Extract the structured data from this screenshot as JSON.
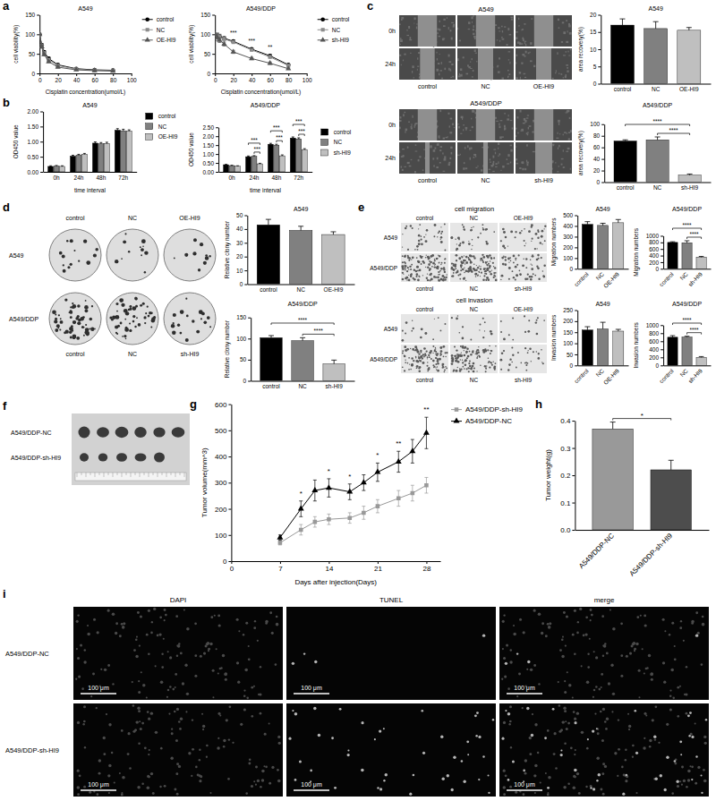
{
  "panel_labels": [
    "a",
    "b",
    "c",
    "d",
    "e",
    "f",
    "g",
    "h",
    "i"
  ],
  "chart_data": [
    {
      "type": "line",
      "title": "A549",
      "x_label": "Cisplatin concentration(umol/L)",
      "y_label": "cell viability(%)",
      "x": [
        0,
        2.5,
        5,
        10,
        20,
        40,
        60,
        80
      ],
      "xlim": [
        0,
        100
      ],
      "xticks": [
        0,
        20,
        40,
        60,
        80,
        100
      ],
      "ylim": [
        0,
        150
      ],
      "yticks": [
        0,
        50,
        100,
        150
      ],
      "legend": "right",
      "series": [
        {
          "name": "control",
          "color": "#000000",
          "marker": "circle",
          "values": [
            100,
            72,
            55,
            38,
            22,
            12,
            9,
            8
          ],
          "errors": [
            0,
            4,
            3,
            3,
            2,
            1,
            1,
            1
          ]
        },
        {
          "name": "NC",
          "color": "#8c8c8c",
          "marker": "square",
          "values": [
            100,
            70,
            52,
            35,
            20,
            11,
            8,
            7
          ],
          "errors": [
            0,
            4,
            3,
            3,
            2,
            1,
            1,
            1
          ]
        },
        {
          "name": "OE-HI9",
          "color": "#555555",
          "marker": "triangle",
          "values": [
            100,
            68,
            48,
            30,
            16,
            9,
            7,
            6
          ],
          "errors": [
            0,
            4,
            3,
            2,
            2,
            1,
            1,
            1
          ]
        }
      ]
    },
    {
      "type": "line",
      "title": "A549/DDP",
      "x_label": "Cisplatin concentration(umol/L)",
      "y_label": "cell viability(%)",
      "x": [
        0,
        2.5,
        5,
        10,
        20,
        40,
        60,
        80
      ],
      "xlim": [
        0,
        100
      ],
      "xticks": [
        0,
        20,
        40,
        60,
        80,
        100
      ],
      "ylim": [
        0,
        150
      ],
      "yticks": [
        0,
        50,
        100,
        150
      ],
      "legend": "right",
      "series": [
        {
          "name": "control",
          "color": "#000000",
          "marker": "circle",
          "values": [
            100,
            97,
            95,
            90,
            82,
            62,
            45,
            22
          ],
          "errors": [
            0,
            6,
            5,
            4,
            3,
            3,
            3,
            2
          ]
        },
        {
          "name": "NC",
          "color": "#8c8c8c",
          "marker": "square",
          "values": [
            100,
            96,
            93,
            88,
            80,
            60,
            42,
            20
          ],
          "errors": [
            0,
            7,
            6,
            5,
            4,
            3,
            3,
            2
          ]
        },
        {
          "name": "sh-HI9",
          "color": "#555555",
          "marker": "triangle",
          "values": [
            100,
            92,
            85,
            75,
            55,
            38,
            26,
            12
          ],
          "errors": [
            0,
            8,
            6,
            5,
            4,
            3,
            3,
            2
          ]
        }
      ],
      "annotations": [
        {
          "text": "***",
          "x": 20
        },
        {
          "text": "***",
          "x": 40
        },
        {
          "text": "**",
          "x": 60
        }
      ]
    },
    {
      "type": "bar",
      "title": "A549",
      "x_label": "time interval",
      "y_label": "OD450 value",
      "categories": [
        "0h",
        "24h",
        "48h",
        "72h"
      ],
      "ylim": [
        0,
        2
      ],
      "yticks": [
        {
          "value": 0,
          "label": "0.00"
        },
        {
          "value": 0.5,
          "label": "0.50"
        },
        {
          "value": 1,
          "label": "1.00"
        },
        {
          "value": 1.5,
          "label": "1.50"
        },
        {
          "value": 2,
          "label": "2.00"
        }
      ],
      "legend": "right",
      "series": [
        {
          "name": "control",
          "color": "#000000",
          "values": [
            0.18,
            0.52,
            0.95,
            1.38
          ],
          "errors": [
            0.02,
            0.03,
            0.04,
            0.05
          ]
        },
        {
          "name": "NC",
          "color": "#808080",
          "values": [
            0.19,
            0.55,
            0.93,
            1.36
          ],
          "errors": [
            0.02,
            0.03,
            0.04,
            0.05
          ]
        },
        {
          "name": "OE-HI9",
          "color": "#bfbfbf",
          "values": [
            0.18,
            0.58,
            0.94,
            1.35
          ],
          "errors": [
            0.02,
            0.03,
            0.04,
            0.04
          ]
        }
      ]
    },
    {
      "type": "bar",
      "title": "A549/DDP",
      "x_label": "time interval",
      "y_label": "OD450 value",
      "categories": [
        "0h",
        "24h",
        "48h",
        "72h"
      ],
      "ylim": [
        0,
        2.5
      ],
      "yticks": [
        {
          "value": 0,
          "label": "0.00"
        },
        {
          "value": 0.5,
          "label": "0.50"
        },
        {
          "value": 1,
          "label": "1.00"
        },
        {
          "value": 1.5,
          "label": "1.50"
        },
        {
          "value": 2,
          "label": "2.00"
        },
        {
          "value": 2.5,
          "label": "2.50"
        }
      ],
      "legend": "right",
      "series": [
        {
          "name": "control",
          "color": "#000000",
          "values": [
            0.4,
            0.85,
            1.55,
            1.9
          ],
          "errors": [
            0.02,
            0.04,
            0.05,
            0.06
          ]
        },
        {
          "name": "NC",
          "color": "#808080",
          "values": [
            0.35,
            0.87,
            1.5,
            1.85
          ],
          "errors": [
            0.02,
            0.04,
            0.05,
            0.06
          ]
        },
        {
          "name": "sh-HI9",
          "color": "#bfbfbf",
          "values": [
            0.32,
            0.45,
            0.9,
            1.25
          ],
          "errors": [
            0.02,
            0.03,
            0.05,
            0.05
          ]
        }
      ],
      "annotations": [
        {
          "text": "***",
          "category": 1,
          "series": [
            1,
            2
          ]
        },
        {
          "text": "***",
          "category": 1,
          "series": [
            0,
            2
          ]
        },
        {
          "text": "***",
          "category": 2,
          "series": [
            1,
            2
          ]
        },
        {
          "text": "***",
          "category": 2,
          "series": [
            0,
            2
          ]
        },
        {
          "text": "***",
          "category": 3,
          "series": [
            1,
            2
          ]
        },
        {
          "text": "***",
          "category": 3,
          "series": [
            0,
            2
          ]
        }
      ]
    },
    {
      "type": "bar",
      "title": "A549",
      "y_label": "area recovery(%)",
      "categories": [
        "control",
        "NC",
        "OE-HI9"
      ],
      "values": [
        17,
        16,
        15.5
      ],
      "errors": [
        1.8,
        2,
        0.8
      ],
      "colors": [
        "#000000",
        "#808080",
        "#bfbfbf"
      ],
      "ylim": [
        0,
        20
      ],
      "yticks": [
        0,
        5,
        10,
        15,
        20
      ]
    },
    {
      "type": "bar",
      "title": "A549/DDP",
      "y_label": "area recovery(%)",
      "categories": [
        "control",
        "NC",
        "sh-HI9"
      ],
      "values": [
        71,
        73,
        12
      ],
      "errors": [
        2,
        5,
        2
      ],
      "colors": [
        "#000000",
        "#808080",
        "#bfbfbf"
      ],
      "ylim": [
        0,
        100
      ],
      "yticks": [
        0,
        20,
        40,
        60,
        80,
        100
      ],
      "annotations": [
        {
          "text": "****",
          "categories": [
            1,
            2
          ]
        },
        {
          "text": "****",
          "categories": [
            0,
            2
          ]
        }
      ]
    },
    {
      "type": "bar",
      "title": "A549",
      "y_label": "Relative clony number",
      "categories": [
        "control",
        "NC",
        "OE-HI9"
      ],
      "values": [
        43,
        39,
        36
      ],
      "errors": [
        4,
        3,
        2
      ],
      "colors": [
        "#000000",
        "#808080",
        "#bfbfbf"
      ],
      "ylim": [
        0,
        50
      ],
      "yticks": [
        0,
        10,
        20,
        30,
        40,
        50
      ]
    },
    {
      "type": "bar",
      "title": "A549/DDP",
      "y_label": "Relative clony number",
      "categories": [
        "control",
        "NC",
        "sh-HI9"
      ],
      "values": [
        102,
        95,
        40
      ],
      "errors": [
        5,
        7,
        9
      ],
      "colors": [
        "#000000",
        "#808080",
        "#bfbfbf"
      ],
      "ylim": [
        0,
        150
      ],
      "yticks": [
        0,
        50,
        100,
        150
      ],
      "annotations": [
        {
          "text": "****",
          "categories": [
            1,
            2
          ]
        },
        {
          "text": "****",
          "categories": [
            0,
            2
          ]
        }
      ]
    },
    {
      "type": "bar",
      "title": "A549",
      "y_label": "Migration numbers",
      "categories": [
        "control",
        "NC",
        "OE-HI9"
      ],
      "values": [
        415,
        405,
        430
      ],
      "errors": [
        25,
        20,
        30
      ],
      "colors": [
        "#000000",
        "#808080",
        "#bfbfbf"
      ],
      "ylim": [
        0,
        500
      ],
      "yticks": [
        0,
        100,
        200,
        300,
        400,
        500
      ]
    },
    {
      "type": "bar",
      "title": "A549/DDP",
      "y_label": "Migration numbers",
      "categories": [
        "control",
        "NC",
        "sh-HI9"
      ],
      "values": [
        800,
        790,
        350
      ],
      "errors": [
        20,
        60,
        25
      ],
      "colors": [
        "#000000",
        "#808080",
        "#bfbfbf"
      ],
      "ylim": [
        0,
        1000
      ],
      "yticks": [
        0,
        200,
        400,
        600,
        800,
        1000
      ],
      "annotations": [
        {
          "text": "****",
          "categories": [
            1,
            2
          ]
        },
        {
          "text": "****",
          "categories": [
            0,
            2
          ]
        }
      ]
    },
    {
      "type": "bar",
      "title": "A549",
      "y_label": "Invasion numbers",
      "categories": [
        "control",
        "NC",
        "OE-HI9"
      ],
      "values": [
        160,
        165,
        155
      ],
      "errors": [
        15,
        30,
        8
      ],
      "colors": [
        "#000000",
        "#808080",
        "#bfbfbf"
      ],
      "ylim": [
        0,
        250
      ],
      "yticks": [
        0,
        50,
        100,
        150,
        200,
        250
      ]
    },
    {
      "type": "bar",
      "title": "A549/DDP",
      "y_label": "Invasion numbers",
      "categories": [
        "control",
        "NC",
        "sh-HI9"
      ],
      "values": [
        700,
        705,
        200
      ],
      "errors": [
        40,
        20,
        20
      ],
      "colors": [
        "#000000",
        "#808080",
        "#bfbfbf"
      ],
      "ylim": [
        0,
        1000
      ],
      "yticks": [
        0,
        200,
        400,
        600,
        800,
        1000
      ],
      "annotations": [
        {
          "text": "****",
          "categories": [
            1,
            2
          ]
        },
        {
          "text": "****",
          "categories": [
            0,
            2
          ]
        }
      ]
    },
    {
      "type": "line",
      "x_label": "Days after injection(Days)",
      "y_label": "Tumor volume(mm^3)",
      "x": [
        7,
        10,
        12,
        14,
        17,
        19,
        21,
        24,
        26,
        28
      ],
      "xlim": [
        0,
        30
      ],
      "xticks": [
        0,
        7,
        14,
        21,
        28
      ],
      "ylim": [
        0,
        600
      ],
      "yticks": [
        0,
        100,
        200,
        300,
        400,
        500,
        600
      ],
      "legend": "right",
      "series": [
        {
          "name": "A549/DDP-sh-HI9",
          "color": "#999999",
          "marker": "square",
          "values": [
            70,
            120,
            150,
            160,
            165,
            185,
            210,
            240,
            260,
            290
          ],
          "errors": [
            8,
            20,
            20,
            20,
            20,
            25,
            25,
            30,
            30,
            30
          ]
        },
        {
          "name": "A549/DDP-NC",
          "color": "#000000",
          "marker": "triangle",
          "values": [
            90,
            200,
            270,
            280,
            265,
            300,
            340,
            380,
            420,
            490
          ],
          "errors": [
            10,
            30,
            40,
            35,
            30,
            30,
            35,
            40,
            45,
            60
          ]
        }
      ],
      "annotations": [
        {
          "text": "*",
          "x": 10
        },
        {
          "text": "*",
          "x": 14
        },
        {
          "text": "*",
          "x": 17
        },
        {
          "text": "*",
          "x": 21
        },
        {
          "text": "**",
          "x": 24
        },
        {
          "text": "**",
          "x": 28
        }
      ]
    },
    {
      "type": "bar",
      "y_label": "Tumor weight(g)",
      "categories": [
        "A549/DDP-NC",
        "A549/DDP-sh-HI9"
      ],
      "values": [
        0.37,
        0.22
      ],
      "errors": [
        0.025,
        0.035
      ],
      "colors": [
        "#999999",
        "#4d4d4d"
      ],
      "ylim": [
        0,
        0.4
      ],
      "yticks": [
        {
          "value": 0,
          "label": "0.0"
        },
        {
          "value": 0.1,
          "label": "0.1"
        },
        {
          "value": 0.2,
          "label": "0.2"
        },
        {
          "value": 0.3,
          "label": "0.3"
        },
        {
          "value": 0.4,
          "label": "0.4"
        }
      ],
      "annotations": [
        {
          "text": "*",
          "categories": [
            0,
            1
          ]
        }
      ]
    }
  ],
  "image_panels": {
    "c": [
      {
        "title": "A549",
        "rows": [
          "0h",
          "24h"
        ],
        "columns": [
          "control",
          "NC",
          "OE-HI9"
        ]
      },
      {
        "title": "A549/DDP",
        "rows": [
          "0h",
          "24h"
        ],
        "columns": [
          "control",
          "NC",
          "sh-HI9"
        ]
      }
    ],
    "d": {
      "columns_top": [
        "control",
        "NC",
        "OE-HI9"
      ],
      "rows": [
        "A549",
        "A549/DDP"
      ],
      "columns_bottom": [
        "control",
        "NC",
        "sh-HI9"
      ]
    },
    "e": [
      {
        "title": "cell migration",
        "columns_top": [
          "control",
          "NC",
          "OE-HI9"
        ],
        "rows": [
          "A549",
          "A549/DDP"
        ],
        "columns_bottom": [
          "control",
          "NC",
          "sh-HI9"
        ]
      },
      {
        "title": "cell invasion",
        "columns_top": [
          "control",
          "NC",
          "OE-HI9"
        ],
        "rows": [
          "A549",
          "A549/DDP"
        ],
        "columns_bottom": [
          "control",
          "NC",
          "sh-HI9"
        ]
      }
    ],
    "f": {
      "rows": [
        "A549/DDP-NC",
        "A549/DDP-sh-HI9"
      ]
    },
    "i": {
      "columns": [
        "DAPI",
        "TUNEL",
        "merge"
      ],
      "rows": [
        "A549/DDP-NC",
        "A549/DDP-sh-HI9"
      ],
      "scale_bar": "100 μm"
    }
  }
}
